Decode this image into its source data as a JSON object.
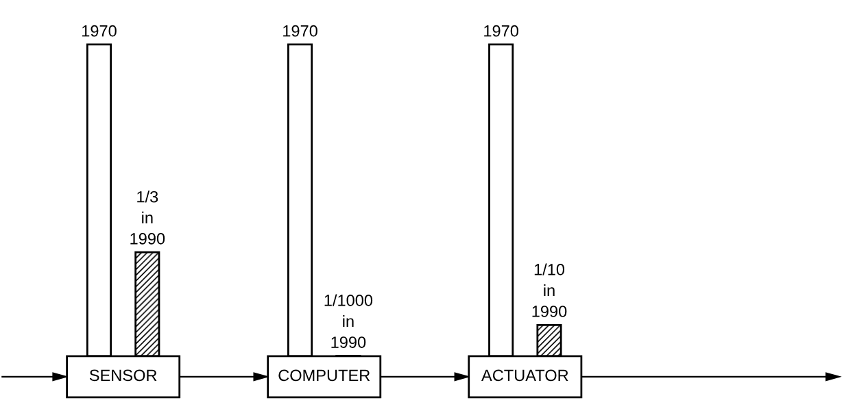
{
  "chart_data": {
    "type": "bar",
    "categories": [
      "SENSOR",
      "COMPUTER",
      "ACTUATOR"
    ],
    "series": [
      {
        "name": "1970",
        "color": "#ffffff",
        "values": [
          1,
          1,
          1
        ]
      },
      {
        "name": "in\n1990",
        "color": "#000000",
        "values": [
          0.3333,
          0.001,
          0.1
        ],
        "value_labels": [
          "1/3",
          "1/1000",
          "1/10"
        ]
      }
    ]
  }
}
